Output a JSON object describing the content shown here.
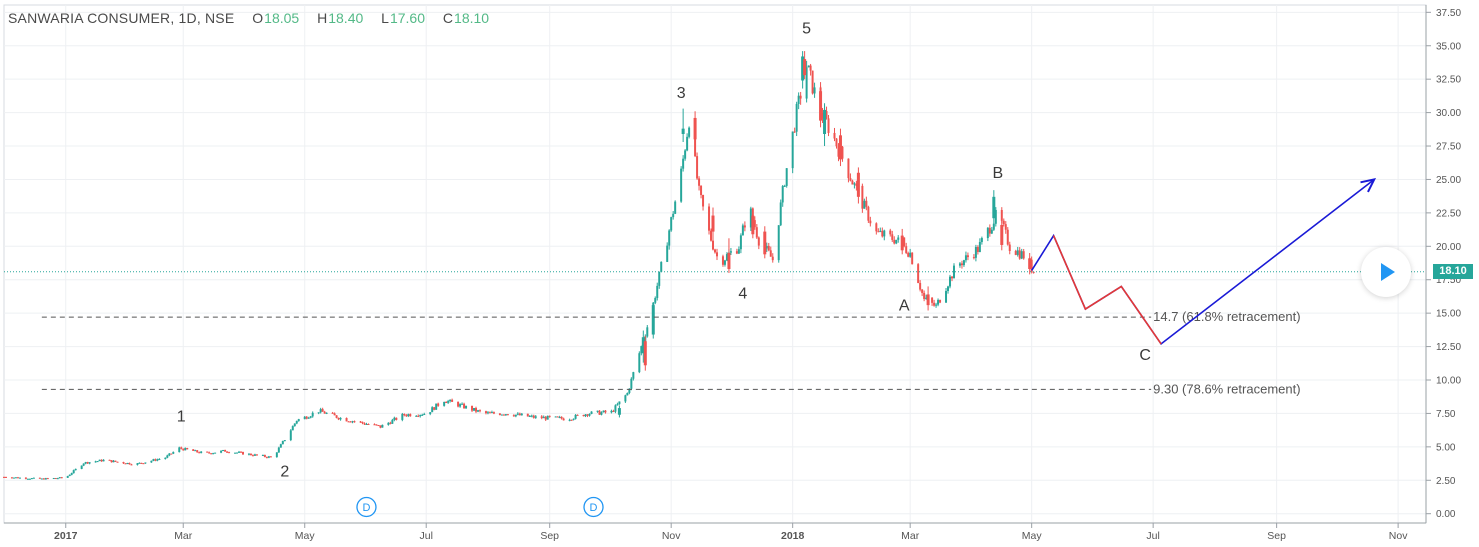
{
  "header": {
    "symbol": "SANWARIA CONSUMER, 1D, NSE",
    "o_label": "O",
    "o_value": "18.05",
    "h_label": "H",
    "h_value": "18.40",
    "l_label": "L",
    "l_value": "17.60",
    "c_label": "C",
    "c_value": "18.10"
  },
  "last_price_tag": "18.10",
  "colors": {
    "up": "#26a69a",
    "down": "#ef5350",
    "projection_red": "#e53935",
    "projection_blue": "#1a1ad6",
    "accent": "#2196f3"
  },
  "icons": {
    "play": "play-icon",
    "dividend": "dividend-marker-icon"
  },
  "chart_data": {
    "type": "candlestick",
    "y_axis": {
      "position": "right",
      "ylim": [
        0,
        37.5
      ],
      "ticks": [
        "37.50",
        "35.00",
        "32.50",
        "30.00",
        "27.50",
        "25.00",
        "22.50",
        "20.00",
        "17.50",
        "15.00",
        "12.50",
        "10.00",
        "7.50",
        "5.00",
        "2.50",
        "0.00"
      ]
    },
    "x_axis": {
      "range": [
        "2016-12-01",
        "2018-11-15"
      ],
      "ticks": [
        {
          "date": "2017-01-01",
          "label": "2017",
          "bold": true
        },
        {
          "date": "2017-03-01",
          "label": "Mar"
        },
        {
          "date": "2017-05-01",
          "label": "May"
        },
        {
          "date": "2017-07-01",
          "label": "Jul"
        },
        {
          "date": "2017-09-01",
          "label": "Sep"
        },
        {
          "date": "2017-11-01",
          "label": "Nov"
        },
        {
          "date": "2018-01-01",
          "label": "2018",
          "bold": true
        },
        {
          "date": "2018-03-01",
          "label": "Mar"
        },
        {
          "date": "2018-05-01",
          "label": "May"
        },
        {
          "date": "2018-07-01",
          "label": "Jul"
        },
        {
          "date": "2018-09-01",
          "label": "Sep"
        },
        {
          "date": "2018-11-01",
          "label": "Nov"
        }
      ]
    },
    "grid": true,
    "price_path": [
      [
        "2016-12-01",
        2.75
      ],
      [
        "2016-12-20",
        2.6
      ],
      [
        "2017-01-01",
        2.7
      ],
      [
        "2017-01-10",
        3.8
      ],
      [
        "2017-01-20",
        4.0
      ],
      [
        "2017-02-05",
        3.7
      ],
      [
        "2017-02-20",
        4.2
      ],
      [
        "2017-02-27",
        4.9
      ],
      [
        "2017-03-12",
        4.5
      ],
      [
        "2017-03-22",
        4.7
      ],
      [
        "2017-04-05",
        4.4
      ],
      [
        "2017-04-15",
        4.2
      ],
      [
        "2017-04-22",
        5.8
      ],
      [
        "2017-04-27",
        7.0
      ],
      [
        "2017-05-01",
        7.2
      ],
      [
        "2017-05-08",
        7.7
      ],
      [
        "2017-05-20",
        7.1
      ],
      [
        "2017-06-08",
        6.5
      ],
      [
        "2017-06-20",
        7.4
      ],
      [
        "2017-07-01",
        7.5
      ],
      [
        "2017-07-10",
        8.5
      ],
      [
        "2017-07-20",
        8.0
      ],
      [
        "2017-07-30",
        7.5
      ],
      [
        "2017-08-10",
        7.5
      ],
      [
        "2017-08-25",
        7.2
      ],
      [
        "2017-09-10",
        7.1
      ],
      [
        "2017-09-20",
        7.5
      ],
      [
        "2017-10-02",
        7.6
      ],
      [
        "2017-10-10",
        9.0
      ],
      [
        "2017-10-14",
        11.0
      ],
      [
        "2017-10-22",
        15.0
      ],
      [
        "2017-10-30",
        20.5
      ],
      [
        "2017-11-06",
        25.5
      ],
      [
        "2017-11-10",
        29.5
      ],
      [
        "2017-11-15",
        24.0
      ],
      [
        "2017-11-20",
        21.0
      ],
      [
        "2017-11-25",
        18.8
      ],
      [
        "2017-12-05",
        20.0
      ],
      [
        "2017-12-10",
        23.0
      ],
      [
        "2017-12-15",
        20.5
      ],
      [
        "2017-12-22",
        19.0
      ],
      [
        "2017-12-28",
        25.0
      ],
      [
        "2018-01-03",
        30.0
      ],
      [
        "2018-01-08",
        33.5
      ],
      [
        "2018-01-14",
        30.5
      ],
      [
        "2018-01-22",
        28.0
      ],
      [
        "2018-02-01",
        24.5
      ],
      [
        "2018-02-12",
        21.0
      ],
      [
        "2018-02-22",
        20.5
      ],
      [
        "2018-03-01",
        19.5
      ],
      [
        "2018-03-08",
        16.0
      ],
      [
        "2018-03-14",
        15.5
      ],
      [
        "2018-03-24",
        18.5
      ],
      [
        "2018-04-04",
        19.8
      ],
      [
        "2018-04-14",
        22.5
      ],
      [
        "2018-04-20",
        20.0
      ],
      [
        "2018-04-28",
        19.2
      ],
      [
        "2018-05-02",
        18.1
      ]
    ],
    "candles": [
      {
        "date": "2017-10-06",
        "o": 7.4,
        "h": 8.1,
        "l": 7.2,
        "c": 7.9
      },
      {
        "date": "2017-10-18",
        "o": 12.0,
        "h": 13.7,
        "l": 11.3,
        "c": 13.2
      },
      {
        "date": "2017-10-19",
        "o": 12.9,
        "h": 13.3,
        "l": 10.7,
        "c": 11.1
      },
      {
        "date": "2017-10-23",
        "o": 13.4,
        "h": 15.8,
        "l": 13.1,
        "c": 15.6
      },
      {
        "date": "2017-11-07",
        "o": 28.4,
        "h": 30.3,
        "l": 27.8,
        "c": 28.8
      },
      {
        "date": "2017-11-13",
        "o": 29.6,
        "h": 30.1,
        "l": 27.6,
        "c": 28.0
      },
      {
        "date": "2017-11-22",
        "o": 22.3,
        "h": 22.9,
        "l": 20.6,
        "c": 21.1
      },
      {
        "date": "2017-11-30",
        "o": 19.5,
        "h": 20.6,
        "l": 18.0,
        "c": 18.3
      },
      {
        "date": "2017-12-12",
        "o": 22.3,
        "h": 22.9,
        "l": 20.6,
        "c": 20.9
      },
      {
        "date": "2017-12-18",
        "o": 21.1,
        "h": 21.5,
        "l": 19.1,
        "c": 19.4
      },
      {
        "date": "2018-01-06",
        "o": 32.4,
        "h": 34.6,
        "l": 31.8,
        "c": 34.2
      },
      {
        "date": "2018-01-07",
        "o": 34.0,
        "h": 34.6,
        "l": 32.5,
        "c": 32.8
      },
      {
        "date": "2018-01-15",
        "o": 31.6,
        "h": 32.0,
        "l": 28.9,
        "c": 29.4
      },
      {
        "date": "2018-01-17",
        "o": 28.4,
        "h": 30.7,
        "l": 27.5,
        "c": 30.2
      },
      {
        "date": "2018-01-25",
        "o": 28.3,
        "h": 28.8,
        "l": 26.0,
        "c": 26.5
      },
      {
        "date": "2018-02-03",
        "o": 25.5,
        "h": 25.9,
        "l": 23.2,
        "c": 23.7
      },
      {
        "date": "2018-02-25",
        "o": 20.8,
        "h": 21.3,
        "l": 19.4,
        "c": 19.7
      },
      {
        "date": "2018-03-10",
        "o": 16.4,
        "h": 17.0,
        "l": 15.2,
        "c": 15.6
      },
      {
        "date": "2018-04-12",
        "o": 22.1,
        "h": 24.2,
        "l": 21.3,
        "c": 23.7
      },
      {
        "date": "2018-04-16",
        "o": 21.6,
        "h": 22.0,
        "l": 19.7,
        "c": 20.1
      },
      {
        "date": "2018-04-30",
        "o": 19.1,
        "h": 19.5,
        "l": 17.9,
        "c": 18.3
      }
    ],
    "wave_labels": [
      {
        "text": "1",
        "date": "2017-02-28",
        "price": 6.9
      },
      {
        "text": "2",
        "date": "2017-04-21",
        "price": 2.8
      },
      {
        "text": "3",
        "date": "2017-11-06",
        "price": 31.1
      },
      {
        "text": "4",
        "date": "2017-12-07",
        "price": 16.1
      },
      {
        "text": "5",
        "date": "2018-01-08",
        "price": 35.9
      },
      {
        "text": "A",
        "date": "2018-02-26",
        "price": 15.2
      },
      {
        "text": "B",
        "date": "2018-04-14",
        "price": 25.1
      },
      {
        "text": "C",
        "date": "2018-06-27",
        "price": 11.5
      }
    ],
    "retracement_lines": [
      {
        "price": 14.7,
        "from": "2016-12-20",
        "to": "2018-06-30",
        "label": "14.7 (61.8% retracement)",
        "label_date": "2018-07-01"
      },
      {
        "price": 9.3,
        "from": "2016-12-20",
        "to": "2018-06-30",
        "label": "9.30 (78.6% retracement)",
        "label_date": "2018-07-01"
      }
    ],
    "projection": {
      "red": [
        [
          "2018-05-12",
          20.8
        ],
        [
          "2018-05-28",
          15.3
        ],
        [
          "2018-06-15",
          17.0
        ],
        [
          "2018-07-05",
          12.7
        ]
      ],
      "blue": [
        [
          "2018-05-01",
          18.2
        ],
        [
          "2018-05-12",
          20.8
        ],
        [
          "2018-05-28",
          15.3
        ],
        [
          "2018-06-15",
          17.0
        ],
        [
          "2018-07-05",
          12.7
        ],
        [
          "2018-10-20",
          25.0
        ]
      ]
    },
    "dividend_markers": [
      {
        "text": "D",
        "date": "2017-06-01"
      },
      {
        "text": "D",
        "date": "2017-09-23"
      }
    ],
    "last_price": 18.1
  }
}
